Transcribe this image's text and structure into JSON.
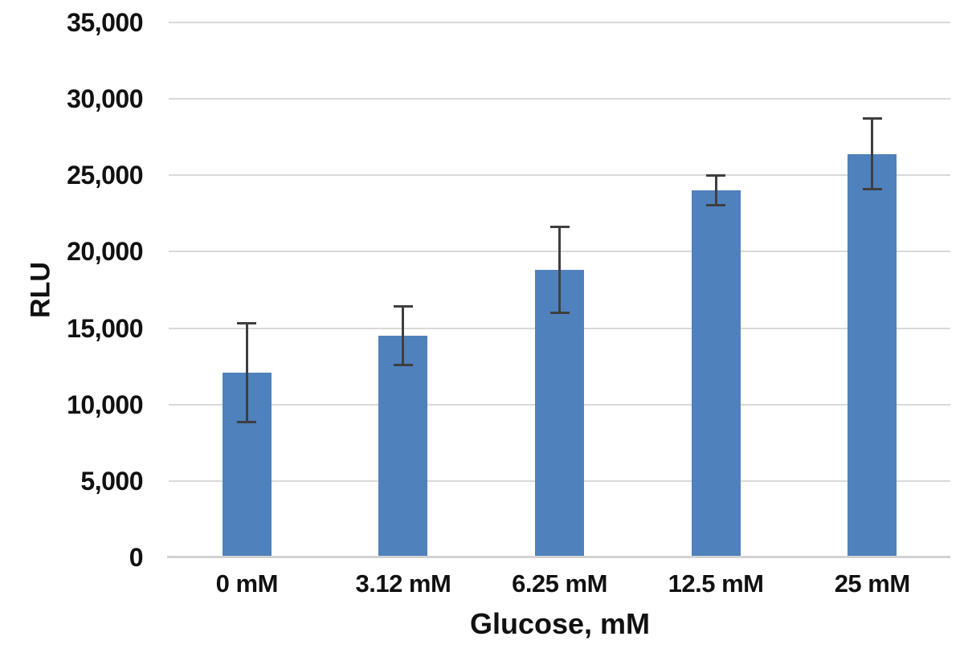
{
  "chart_data": {
    "type": "bar",
    "title": "",
    "xlabel": "Glucose, mM",
    "ylabel": "RLU",
    "categories": [
      "0 mM",
      "3.12 mM",
      "6.25 mM",
      "12.5 mM",
      "25 mM"
    ],
    "values": [
      12100,
      14500,
      18800,
      24000,
      26400
    ],
    "error_bars": [
      3250,
      1950,
      2850,
      1000,
      2350
    ],
    "ylim": [
      0,
      35000
    ],
    "ytick_step": 5000,
    "ytick_labels": [
      "0",
      "5,000",
      "10,000",
      "15,000",
      "20,000",
      "25,000",
      "30,000",
      "35,000"
    ],
    "grid": true,
    "legend": false,
    "colors": {
      "bar": "#4F81BD",
      "error_bar": "#3F3F3F",
      "gridline": "#D9D9D9",
      "axis_line": "#D2D2D2",
      "text": "#111111",
      "background": "#FFFFFF"
    }
  }
}
